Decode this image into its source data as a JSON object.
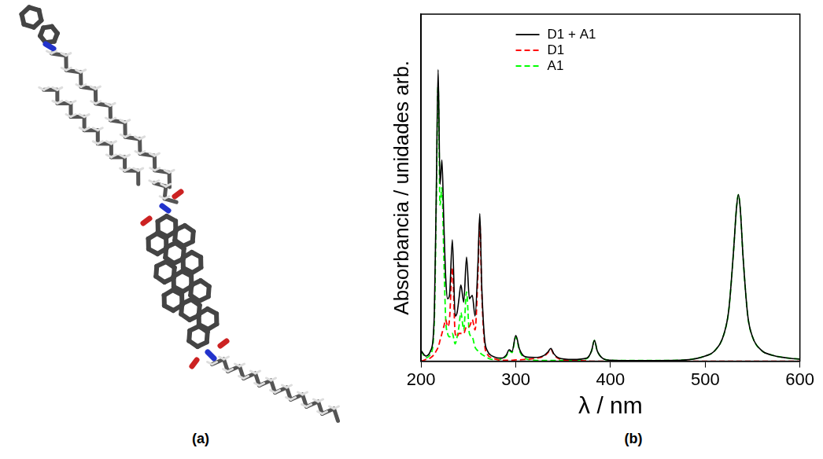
{
  "panel_labels": [
    "(a)",
    "(b)"
  ],
  "chart_data": {
    "type": "line",
    "x_label": "λ / nm",
    "y_label": "Absorbancia / unidades arb.",
    "xlim": [
      200,
      600
    ],
    "xticks": [
      200,
      300,
      400,
      500,
      600
    ],
    "ylim": [
      0,
      1
    ],
    "tick_labels": "x",
    "grid": false,
    "legend": "top",
    "x": [
      200,
      205,
      210,
      214,
      216,
      218,
      220,
      222,
      224,
      226,
      228,
      230,
      233,
      236,
      238,
      240,
      242,
      245,
      248,
      251,
      254,
      257,
      260,
      262,
      264,
      267,
      270,
      275,
      280,
      285,
      290,
      293,
      296,
      300,
      304,
      310,
      320,
      330,
      334,
      337,
      340,
      345,
      360,
      375,
      380,
      383,
      386,
      392,
      400,
      420,
      450,
      480,
      500,
      510,
      520,
      525,
      530,
      533,
      535,
      537,
      540,
      545,
      550,
      560,
      570,
      585,
      600
    ],
    "series": [
      {
        "name": "D1 + A1",
        "color": "#000000",
        "line_style": "solid",
        "values": [
          0.03,
          0.015,
          0.03,
          0.14,
          0.48,
          0.84,
          0.51,
          0.58,
          0.4,
          0.24,
          0.18,
          0.19,
          0.35,
          0.13,
          0.14,
          0.18,
          0.22,
          0.17,
          0.3,
          0.18,
          0.19,
          0.13,
          0.28,
          0.425,
          0.22,
          0.065,
          0.03,
          0.015,
          0.01,
          0.009,
          0.018,
          0.033,
          0.028,
          0.074,
          0.034,
          0.013,
          0.011,
          0.017,
          0.027,
          0.037,
          0.022,
          0.01,
          0.005,
          0.009,
          0.03,
          0.06,
          0.03,
          0.008,
          0.003,
          0.002,
          0.002,
          0.004,
          0.015,
          0.03,
          0.08,
          0.15,
          0.32,
          0.44,
          0.48,
          0.44,
          0.3,
          0.13,
          0.07,
          0.03,
          0.018,
          0.01,
          0.006
        ]
      },
      {
        "name": "D1",
        "color": "#ff0000",
        "line_style": "dashed",
        "values": [
          0,
          0.005,
          0.01,
          0.02,
          0.03,
          0.04,
          0.06,
          0.08,
          0.1,
          0.12,
          0.1,
          0.12,
          0.27,
          0.08,
          0.07,
          0.08,
          0.08,
          0.08,
          0.1,
          0.1,
          0.12,
          0.09,
          0.25,
          0.4,
          0.2,
          0.05,
          0.02,
          0.01,
          0.005,
          0.003,
          0.003,
          0.003,
          0.003,
          0.004,
          0.004,
          0.005,
          0.008,
          0.015,
          0.025,
          0.035,
          0.02,
          0.008,
          0.002,
          0.001,
          0,
          0,
          0,
          0,
          0,
          0,
          0,
          0,
          0,
          0,
          0,
          0,
          0,
          0,
          0,
          0,
          0,
          0,
          0,
          0,
          0,
          0,
          0
        ]
      },
      {
        "name": "A1",
        "color": "#00ff00",
        "line_style": "dashed",
        "values": [
          0.03,
          0.01,
          0.02,
          0.12,
          0.45,
          0.8,
          0.45,
          0.5,
          0.3,
          0.12,
          0.08,
          0.07,
          0.08,
          0.05,
          0.07,
          0.1,
          0.14,
          0.09,
          0.2,
          0.08,
          0.07,
          0.04,
          0.03,
          0.025,
          0.02,
          0.015,
          0.01,
          0.005,
          0.005,
          0.006,
          0.015,
          0.03,
          0.025,
          0.07,
          0.03,
          0.008,
          0.003,
          0.002,
          0.002,
          0.002,
          0.002,
          0.002,
          0.003,
          0.008,
          0.03,
          0.06,
          0.03,
          0.008,
          0.003,
          0.002,
          0.002,
          0.004,
          0.015,
          0.03,
          0.08,
          0.15,
          0.32,
          0.44,
          0.48,
          0.44,
          0.3,
          0.13,
          0.07,
          0.03,
          0.018,
          0.01,
          0.006
        ]
      }
    ]
  }
}
